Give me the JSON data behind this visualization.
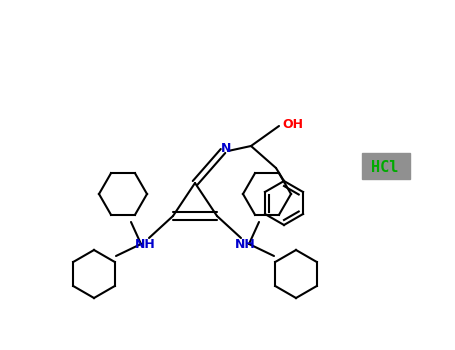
{
  "bg_color": "#ffffff",
  "bond_color": "#000000",
  "N_color": "#0000cd",
  "O_color": "#ff0000",
  "HCl_color": "#00aa00",
  "HCl_bg": "#808080",
  "figsize": [
    4.55,
    3.5
  ],
  "dpi": 100,
  "line_width": 1.5,
  "N_label": "N",
  "NH_label": "NH",
  "O_label": "OH",
  "HCl_label": "HCl"
}
